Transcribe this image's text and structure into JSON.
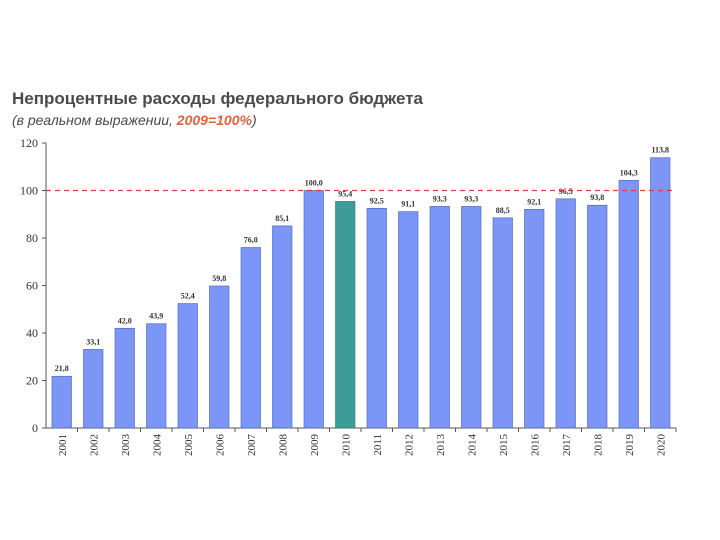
{
  "chart_data": {
    "type": "bar",
    "title": "Непроцентные расходы федерального бюджета",
    "subtitle_prefix": "(в реальном выражении, ",
    "subtitle_accent": "2009=100%",
    "subtitle_suffix": ")",
    "categories": [
      "2001",
      "2002",
      "2003",
      "2004",
      "2005",
      "2006",
      "2007",
      "2008",
      "2009",
      "2010",
      "2011",
      "2012",
      "2013",
      "2014",
      "2015",
      "2016",
      "2017",
      "2018",
      "2019",
      "2020"
    ],
    "values": [
      21.8,
      33.1,
      42.0,
      43.9,
      52.4,
      59.8,
      76.0,
      85.1,
      100.0,
      95.4,
      92.5,
      91.1,
      93.3,
      93.3,
      88.5,
      92.1,
      96.5,
      93.8,
      104.3,
      113.8
    ],
    "data_labels": [
      "21,8",
      "33,1",
      "42,0",
      "43,9",
      "52,4",
      "59,8",
      "76,0",
      "85,1",
      "100,0",
      "95,4",
      "92,5",
      "91,1",
      "93,3",
      "93,3",
      "88,5",
      "92,1",
      "96,5",
      "93,8",
      "104,3",
      "113,8"
    ],
    "highlight_category": "2010",
    "reference_line": 100,
    "ylim": [
      0,
      120
    ],
    "yticks": [
      0,
      20,
      40,
      60,
      80,
      100,
      120
    ],
    "xlabel": "",
    "ylabel": "",
    "grid": false,
    "legend": "none",
    "colors": {
      "bar": "#7b96f7",
      "bar_highlight": "#3d9c97",
      "bar_stroke": "#4a62b8",
      "reference_line": "#e03c3c",
      "axis": "#555555",
      "accent_text": "#e8603c"
    }
  }
}
